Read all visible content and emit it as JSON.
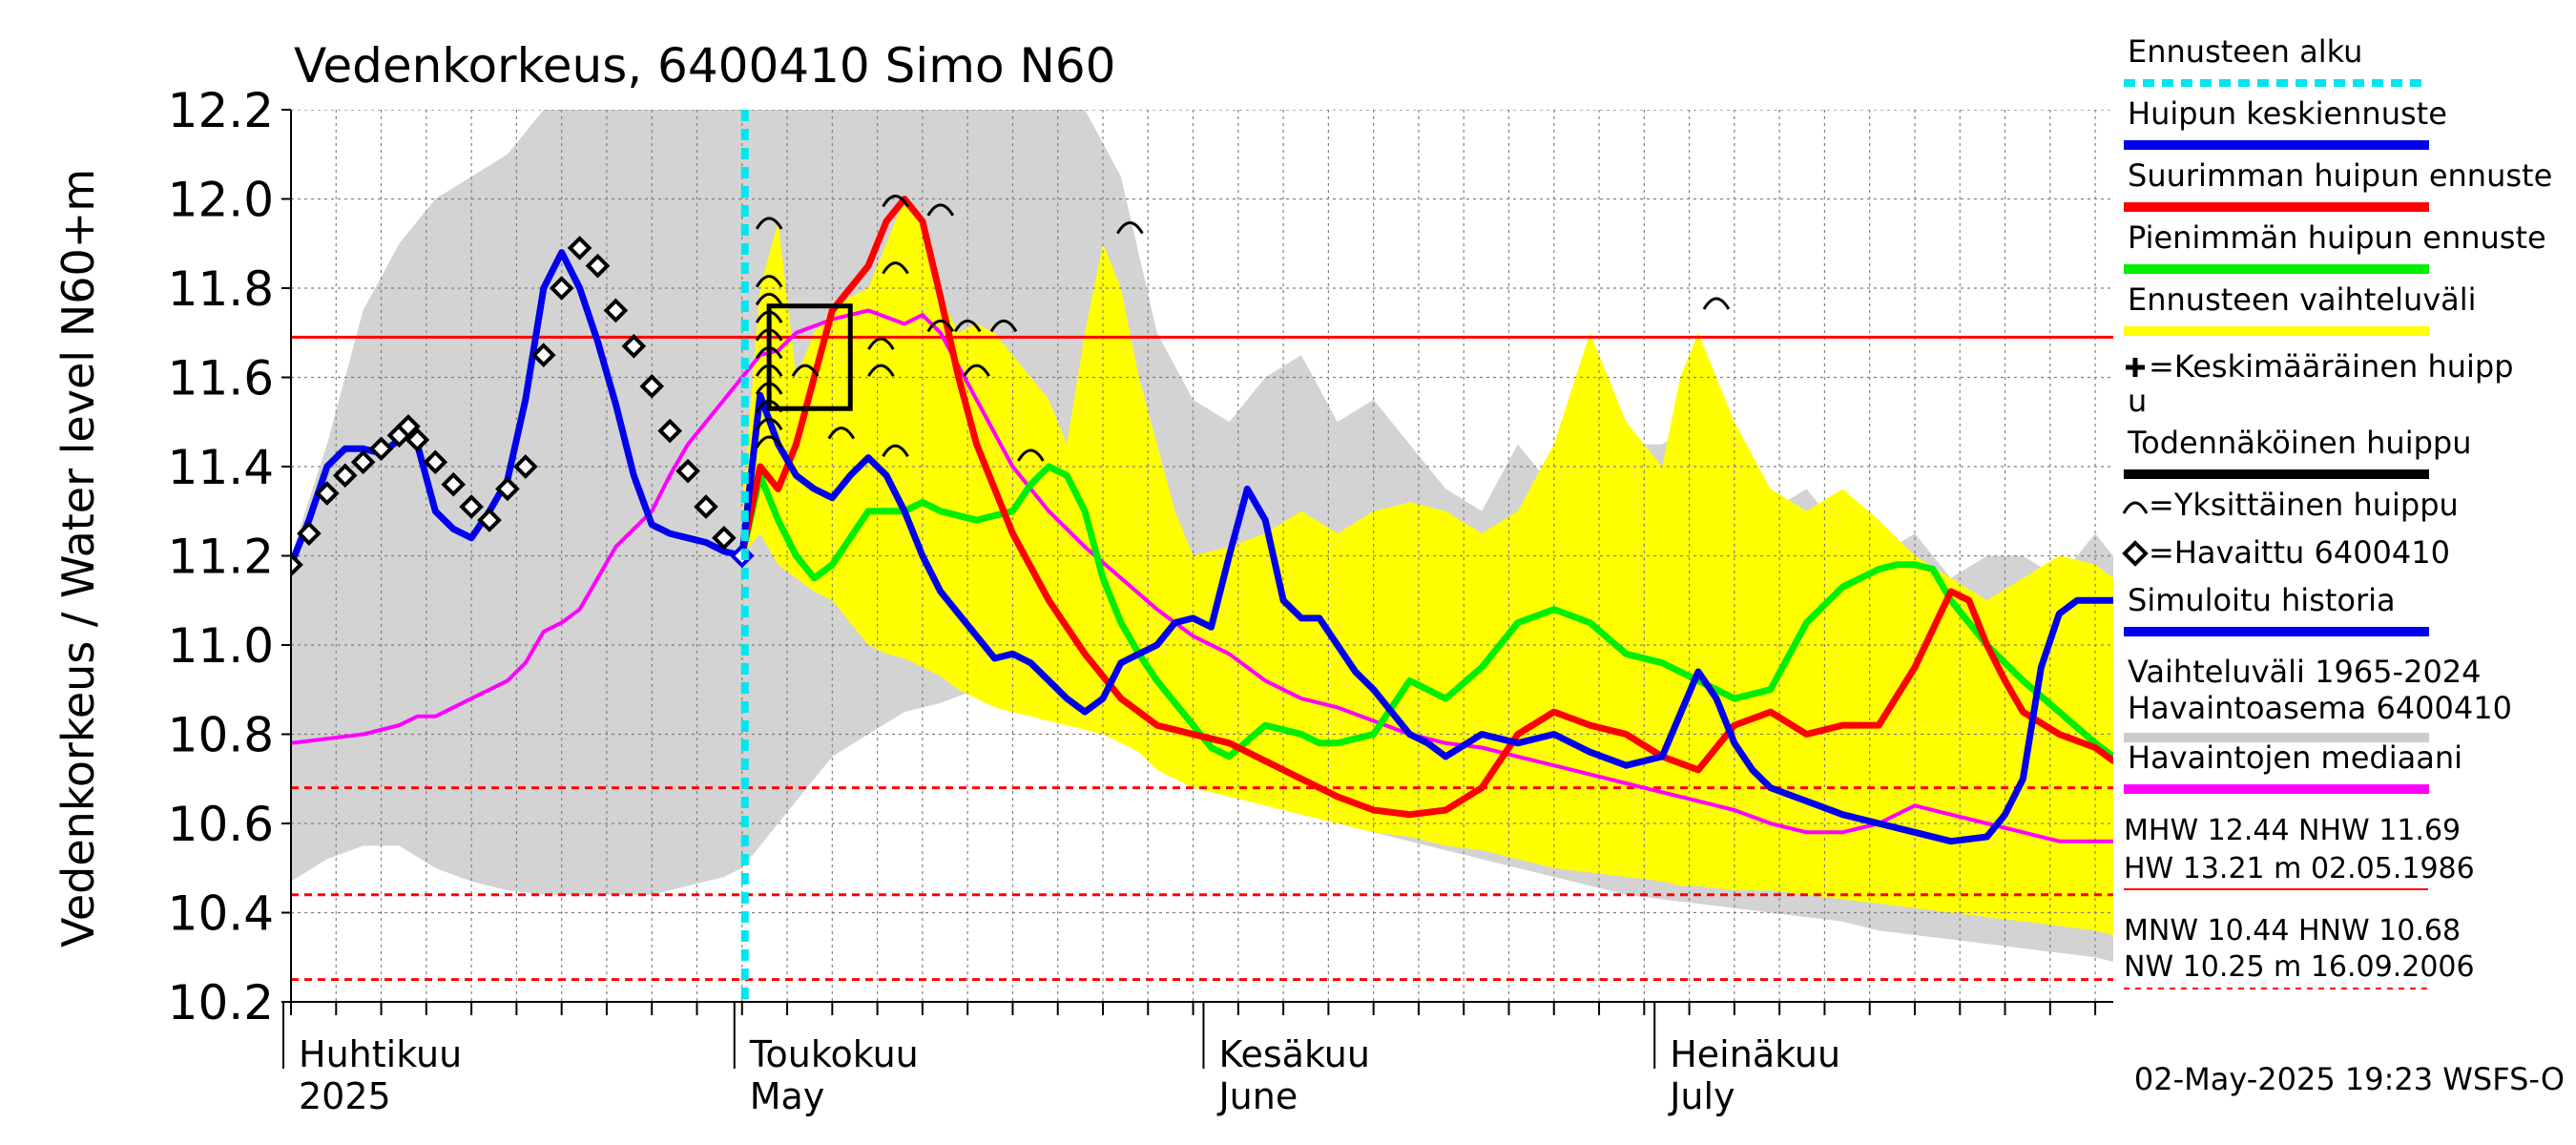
{
  "chart_data": {
    "type": "line",
    "title": "Vedenkorkeus, 6400410 Simo N60",
    "ylabel_top": "N60+m",
    "ylabel": "Vedenkorkeus / Water level",
    "ylim": [
      10.2,
      12.2
    ],
    "y_ticks": [
      "10.2",
      "10.4",
      "10.6",
      "10.8",
      "11.0",
      "11.2",
      "11.4",
      "11.6",
      "11.8",
      "12.0",
      "12.2"
    ],
    "xlim": [
      0,
      101
    ],
    "month_labels": [
      {
        "x": 0,
        "fi": "Huhtikuu",
        "en": "2025"
      },
      {
        "x": 25,
        "fi": "Toukokuu",
        "en": "May"
      },
      {
        "x": 51,
        "fi": "Kesäkuu",
        "en": "June"
      },
      {
        "x": 76,
        "fi": "Heinäkuu",
        "en": "July"
      }
    ],
    "forecast_start_x": 25,
    "reference_lines": [
      {
        "name": "NHW",
        "value": 11.69,
        "style": "solid",
        "color": "#ff0000"
      },
      {
        "name": "HNW",
        "value": 10.68,
        "style": "dashed",
        "color": "#ff0000"
      },
      {
        "name": "MNW",
        "value": 10.44,
        "style": "dashed",
        "color": "#ff0000"
      },
      {
        "name": "NW",
        "value": 10.25,
        "style": "dashed",
        "color": "#ff0000"
      }
    ],
    "history_band": {
      "x": [
        0,
        2,
        4,
        6,
        8,
        10,
        12,
        14,
        16,
        18,
        20,
        22,
        24,
        25,
        26,
        28,
        30,
        32,
        34,
        36,
        38,
        40,
        42,
        44,
        46,
        48,
        50,
        52,
        54,
        56,
        58,
        60,
        62,
        64,
        66,
        68,
        70,
        72,
        74,
        76,
        78,
        80,
        82,
        84,
        86,
        88,
        90,
        92,
        94,
        96,
        98,
        100,
        101
      ],
      "upper": [
        11.2,
        11.45,
        11.75,
        11.9,
        12.0,
        12.05,
        12.1,
        12.2,
        12.2,
        12.2,
        12.2,
        12.2,
        12.2,
        12.2,
        12.2,
        12.2,
        12.2,
        12.2,
        12.2,
        12.2,
        12.2,
        12.2,
        12.2,
        12.2,
        12.05,
        11.7,
        11.55,
        11.5,
        11.6,
        11.65,
        11.5,
        11.55,
        11.45,
        11.35,
        11.3,
        11.45,
        11.35,
        11.3,
        11.45,
        11.45,
        11.5,
        11.4,
        11.3,
        11.35,
        11.25,
        11.2,
        11.25,
        11.15,
        11.2,
        11.2,
        11.15,
        11.25,
        11.2
      ],
      "lower": [
        10.47,
        10.52,
        10.55,
        10.55,
        10.5,
        10.47,
        10.45,
        10.44,
        10.44,
        10.44,
        10.44,
        10.46,
        10.48,
        10.5,
        10.55,
        10.65,
        10.75,
        10.8,
        10.85,
        10.87,
        10.9,
        10.92,
        10.9,
        10.85,
        10.82,
        10.78,
        10.72,
        10.68,
        10.65,
        10.62,
        10.6,
        10.58,
        10.56,
        10.54,
        10.52,
        10.5,
        10.48,
        10.46,
        10.44,
        10.43,
        10.42,
        10.41,
        10.4,
        10.39,
        10.38,
        10.36,
        10.35,
        10.34,
        10.33,
        10.32,
        10.31,
        10.3,
        10.29
      ]
    },
    "forecast_band": {
      "x": [
        25,
        26,
        27,
        28,
        29,
        30,
        31,
        32,
        33,
        34,
        35,
        36,
        37,
        38,
        39,
        40,
        41,
        42,
        43,
        44,
        45,
        46,
        47,
        48,
        49,
        50,
        52,
        54,
        56,
        58,
        60,
        62,
        64,
        66,
        68,
        70,
        72,
        74,
        76,
        77,
        78,
        80,
        82,
        84,
        86,
        88,
        90,
        92,
        94,
        96,
        98,
        100,
        101
      ],
      "upper": [
        11.3,
        11.8,
        11.95,
        11.6,
        11.7,
        11.75,
        11.78,
        11.8,
        11.9,
        12.0,
        11.95,
        11.78,
        11.7,
        11.72,
        11.7,
        11.65,
        11.6,
        11.55,
        11.45,
        11.7,
        11.9,
        11.8,
        11.6,
        11.45,
        11.3,
        11.2,
        11.22,
        11.25,
        11.3,
        11.25,
        11.3,
        11.32,
        11.3,
        11.25,
        11.3,
        11.45,
        11.7,
        11.5,
        11.4,
        11.6,
        11.7,
        11.5,
        11.35,
        11.3,
        11.35,
        11.28,
        11.2,
        11.15,
        11.1,
        11.15,
        11.2,
        11.18,
        11.15
      ],
      "lower": [
        11.2,
        11.25,
        11.18,
        11.15,
        11.12,
        11.1,
        11.05,
        11.0,
        10.98,
        10.97,
        10.95,
        10.93,
        10.9,
        10.88,
        10.86,
        10.85,
        10.84,
        10.83,
        10.82,
        10.81,
        10.8,
        10.78,
        10.76,
        10.72,
        10.7,
        10.68,
        10.66,
        10.64,
        10.62,
        10.6,
        10.58,
        10.57,
        10.55,
        10.54,
        10.52,
        10.5,
        10.49,
        10.48,
        10.47,
        10.46,
        10.46,
        10.45,
        10.45,
        10.44,
        10.43,
        10.42,
        10.41,
        10.4,
        10.39,
        10.38,
        10.37,
        10.36,
        10.35
      ]
    },
    "series": [
      {
        "name": "Havaintojen mediaani",
        "color": "#ff00ff",
        "width": 4,
        "x": [
          0,
          2,
          4,
          6,
          7,
          8,
          10,
          12,
          13,
          14,
          15,
          16,
          17,
          18,
          19,
          20,
          21,
          22,
          23,
          24,
          25,
          26,
          27,
          28,
          30,
          32,
          34,
          35,
          36,
          38,
          40,
          42,
          44,
          46,
          48,
          50,
          52,
          54,
          56,
          58,
          60,
          62,
          64,
          66,
          68,
          70,
          72,
          74,
          76,
          78,
          80,
          82,
          84,
          86,
          88,
          90,
          92,
          94,
          96,
          98,
          100,
          101
        ],
        "values": [
          10.78,
          10.79,
          10.8,
          10.82,
          10.84,
          10.84,
          10.88,
          10.92,
          10.96,
          11.03,
          11.05,
          11.08,
          11.15,
          11.22,
          11.26,
          11.3,
          11.38,
          11.45,
          11.5,
          11.55,
          11.6,
          11.65,
          11.66,
          11.7,
          11.73,
          11.75,
          11.72,
          11.74,
          11.7,
          11.55,
          11.4,
          11.3,
          11.22,
          11.15,
          11.08,
          11.02,
          10.98,
          10.92,
          10.88,
          10.86,
          10.83,
          10.8,
          10.78,
          10.77,
          10.75,
          10.73,
          10.71,
          10.69,
          10.67,
          10.65,
          10.63,
          10.6,
          10.58,
          10.58,
          10.6,
          10.64,
          10.62,
          10.6,
          10.58,
          10.56,
          10.56,
          10.56
        ]
      },
      {
        "name": "Pienimmän huipun ennuste",
        "color": "#00ee00",
        "width": 7,
        "x": [
          25,
          26,
          27,
          28,
          29,
          30,
          32,
          34,
          35,
          36,
          38,
          40,
          41,
          42,
          43,
          44,
          45,
          46,
          47,
          48,
          50,
          51,
          52,
          54,
          56,
          57,
          58,
          60,
          62,
          64,
          66,
          68,
          70,
          72,
          74,
          76,
          78,
          80,
          82,
          84,
          86,
          88,
          89,
          90,
          91,
          92,
          94,
          96,
          98,
          100,
          101
        ],
        "values": [
          11.2,
          11.38,
          11.28,
          11.2,
          11.15,
          11.18,
          11.3,
          11.3,
          11.32,
          11.3,
          11.28,
          11.3,
          11.36,
          11.4,
          11.38,
          11.3,
          11.15,
          11.05,
          10.98,
          10.92,
          10.82,
          10.77,
          10.75,
          10.82,
          10.8,
          10.78,
          10.78,
          10.8,
          10.92,
          10.88,
          10.95,
          11.05,
          11.08,
          11.05,
          10.98,
          10.96,
          10.92,
          10.88,
          10.9,
          11.05,
          11.13,
          11.17,
          11.18,
          11.18,
          11.17,
          11.1,
          11.0,
          10.92,
          10.85,
          10.78,
          10.75
        ]
      },
      {
        "name": "Suurimman huipun ennuste",
        "color": "#ff0000",
        "width": 7,
        "x": [
          25,
          26,
          27,
          28,
          29,
          30,
          31,
          32,
          33,
          34,
          35,
          36,
          37,
          38,
          40,
          42,
          44,
          46,
          48,
          50,
          52,
          54,
          56,
          58,
          60,
          62,
          64,
          66,
          68,
          70,
          72,
          74,
          76,
          78,
          80,
          82,
          84,
          86,
          88,
          90,
          92,
          93,
          94,
          95,
          96,
          98,
          100,
          101
        ],
        "values": [
          11.2,
          11.4,
          11.35,
          11.45,
          11.6,
          11.75,
          11.8,
          11.85,
          11.95,
          12.0,
          11.95,
          11.78,
          11.6,
          11.45,
          11.25,
          11.1,
          10.98,
          10.88,
          10.82,
          10.8,
          10.78,
          10.74,
          10.7,
          10.66,
          10.63,
          10.62,
          10.63,
          10.68,
          10.8,
          10.85,
          10.82,
          10.8,
          10.75,
          10.72,
          10.82,
          10.85,
          10.8,
          10.82,
          10.82,
          10.95,
          11.12,
          11.1,
          11.0,
          10.92,
          10.85,
          10.8,
          10.77,
          10.74
        ]
      },
      {
        "name": "Huipun keskiennuste",
        "color": "#0000ee",
        "width": 7,
        "x": [
          25,
          26,
          27,
          28,
          29,
          30,
          31,
          32,
          33,
          34,
          35,
          36,
          37,
          38,
          39,
          40,
          41,
          42,
          43,
          44,
          45,
          46,
          47,
          48,
          49,
          50,
          51,
          52,
          53,
          54,
          55,
          56,
          57,
          58,
          59,
          60,
          61,
          62,
          63,
          64,
          66,
          68,
          70,
          72,
          74,
          76,
          78,
          79,
          80,
          81,
          82,
          84,
          86,
          88,
          90,
          92,
          94,
          95,
          96,
          97,
          98,
          99,
          100,
          101
        ],
        "values": [
          11.2,
          11.56,
          11.45,
          11.38,
          11.35,
          11.33,
          11.38,
          11.42,
          11.38,
          11.3,
          11.2,
          11.12,
          11.07,
          11.02,
          10.97,
          10.98,
          10.96,
          10.92,
          10.88,
          10.85,
          10.88,
          10.96,
          10.98,
          11.0,
          11.05,
          11.06,
          11.04,
          11.2,
          11.35,
          11.28,
          11.1,
          11.06,
          11.06,
          11.0,
          10.94,
          10.9,
          10.85,
          10.8,
          10.78,
          10.75,
          10.8,
          10.78,
          10.8,
          10.76,
          10.73,
          10.75,
          10.94,
          10.88,
          10.78,
          10.72,
          10.68,
          10.65,
          10.62,
          10.6,
          10.58,
          10.56,
          10.57,
          10.62,
          10.7,
          10.95,
          11.07,
          11.1,
          11.1,
          11.1
        ]
      },
      {
        "name": "Simuloitu historia",
        "color": "#0000ee",
        "width": 7,
        "x": [
          0,
          1,
          2,
          3,
          4,
          5,
          6,
          6.5,
          7,
          8,
          9,
          10,
          11,
          12,
          13,
          14,
          15,
          16,
          17,
          18,
          19,
          20,
          21,
          22,
          23,
          24,
          25
        ],
        "values": [
          11.18,
          11.28,
          11.4,
          11.44,
          11.44,
          11.43,
          11.46,
          11.47,
          11.45,
          11.3,
          11.26,
          11.24,
          11.3,
          11.37,
          11.55,
          11.8,
          11.88,
          11.8,
          11.68,
          11.54,
          11.38,
          11.27,
          11.25,
          11.24,
          11.23,
          11.21,
          11.2
        ]
      }
    ],
    "observed": {
      "name": "Havaittu 6400410",
      "x": [
        0,
        1,
        2,
        3,
        4,
        5,
        6,
        6.5,
        7,
        8,
        9,
        10,
        11,
        12,
        13,
        14,
        15,
        16,
        17,
        18,
        19,
        20,
        21,
        22,
        23,
        24,
        25
      ],
      "values": [
        11.18,
        11.25,
        11.34,
        11.38,
        11.41,
        11.44,
        11.47,
        11.49,
        11.46,
        11.41,
        11.36,
        11.31,
        11.28,
        11.35,
        11.4,
        11.65,
        11.8,
        11.89,
        11.85,
        11.75,
        11.67,
        11.58,
        11.48,
        11.39,
        11.31,
        11.24,
        11.2
      ]
    },
    "single_peaks": [
      {
        "x": 26.5,
        "y": 11.95
      },
      {
        "x": 26.5,
        "y": 11.82
      },
      {
        "x": 26.5,
        "y": 11.78
      },
      {
        "x": 26.5,
        "y": 11.74
      },
      {
        "x": 26.5,
        "y": 11.7
      },
      {
        "x": 26.5,
        "y": 11.66
      },
      {
        "x": 26.5,
        "y": 11.62
      },
      {
        "x": 26.5,
        "y": 11.58
      },
      {
        "x": 26.5,
        "y": 11.54
      },
      {
        "x": 26.5,
        "y": 11.5
      },
      {
        "x": 26.5,
        "y": 11.46
      },
      {
        "x": 28.5,
        "y": 11.62
      },
      {
        "x": 30.5,
        "y": 11.48
      },
      {
        "x": 32.7,
        "y": 11.62
      },
      {
        "x": 32.7,
        "y": 11.68
      },
      {
        "x": 33.5,
        "y": 11.44
      },
      {
        "x": 33.5,
        "y": 11.85
      },
      {
        "x": 33.5,
        "y": 12.0
      },
      {
        "x": 36.0,
        "y": 11.98
      },
      {
        "x": 36.0,
        "y": 11.72
      },
      {
        "x": 37.5,
        "y": 11.72
      },
      {
        "x": 39.5,
        "y": 11.72
      },
      {
        "x": 38.0,
        "y": 11.62
      },
      {
        "x": 41.0,
        "y": 11.43
      },
      {
        "x": 46.5,
        "y": 11.94
      },
      {
        "x": 79.0,
        "y": 11.77
      }
    ],
    "probable_peak_box": {
      "x0": 26.5,
      "x1": 31.0,
      "y0": 11.53,
      "y1": 11.76
    },
    "legend": [
      {
        "label": "Ennusteen alku",
        "kind": "dashed",
        "color": "#00e5ee"
      },
      {
        "label": "Huipun keskiennuste",
        "kind": "line",
        "color": "#0000ee"
      },
      {
        "label": "Suurimman huipun ennuste",
        "kind": "line",
        "color": "#ff0000"
      },
      {
        "label": "Pienimmän huipun ennuste",
        "kind": "line",
        "color": "#00ee00"
      },
      {
        "label": "Ennusteen vaihteluväli",
        "kind": "line",
        "color": "#ffff00"
      },
      {
        "label": "=Keskimääräinen huipp",
        "label2": "u",
        "kind": "plus",
        "color": "#000000"
      },
      {
        "label": "Todennäköinen huippu",
        "kind": "line",
        "color": "#000000"
      },
      {
        "label": "=Yksittäinen huippu",
        "kind": "arc",
        "color": "#000000"
      },
      {
        "label": "=Havaittu 6400410",
        "kind": "diamond",
        "color": "#000000"
      },
      {
        "label": "Simuloitu historia",
        "kind": "line",
        "color": "#0000ee"
      },
      {
        "label": "Vaihteluväli 1965-2024",
        "label2": " Havaintoasema 6400410",
        "kind": "line",
        "color": "#cccccc"
      },
      {
        "label": "Havaintojen mediaani",
        "kind": "line",
        "color": "#ff00ff"
      }
    ],
    "stats": {
      "line1": "MHW  12.44 NHW  11.69",
      "line2": "HW  13.21 m 02.05.1986",
      "line3": "MNW  10.44 HNW  10.68",
      "line4": "NW  10.25 m 16.09.2006"
    },
    "footer": "02-May-2025 19:23 WSFS-O",
    "colors": {
      "history_band": "#d3d3d3",
      "forecast_band": "#ffff00",
      "grid": "#808080",
      "forecast_start": "#00e5ee"
    }
  }
}
